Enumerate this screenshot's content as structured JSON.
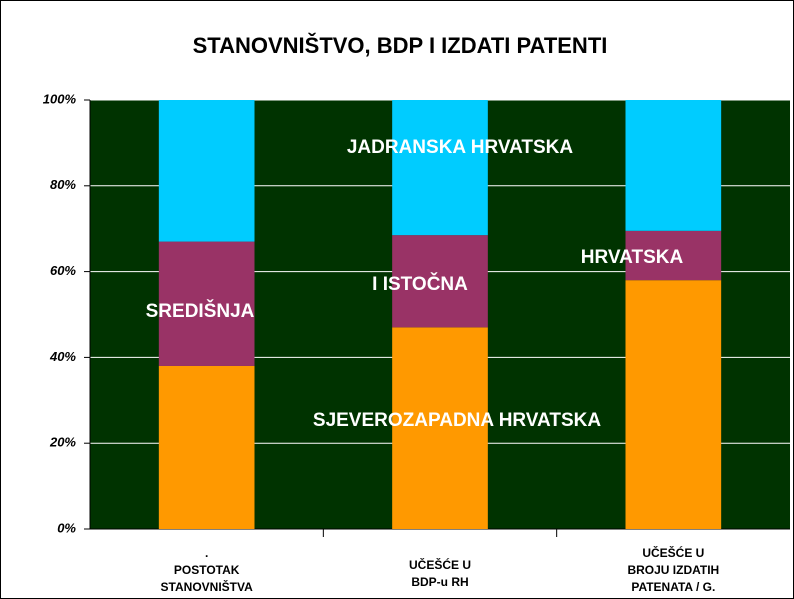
{
  "chart_data": {
    "type": "stacked_bar",
    "title": "STANOVNIŠTVO, BDP I IZDATI PATENTI",
    "categories": [
      [
        ".",
        "POSTOTAK",
        "STANOVNIŠTVA"
      ],
      [
        "UČEŠĆE U",
        "BDP-u  RH"
      ],
      [
        "UČEŠĆE U",
        "BROJU IZDATIH",
        "PATENATA / G."
      ]
    ],
    "series": [
      {
        "color": "#ff9900",
        "values": [
          38,
          47,
          58
        ]
      },
      {
        "color": "#993366",
        "values": [
          29,
          21.5,
          11.5
        ]
      },
      {
        "color": "#00ccff",
        "values": [
          33,
          31.5,
          30.5
        ]
      }
    ],
    "annotations": [
      "JADRANSKA HRVATSKA",
      "SREDIŠNJA",
      "I ISTOČNA",
      "HRVATSKA",
      "SJEVEROZAPADNA HRVATSKA"
    ],
    "ylim": [
      0,
      100
    ],
    "yticks": [
      {
        "value": 0,
        "label": "0%"
      },
      {
        "value": 20,
        "label": "20%"
      },
      {
        "value": 40,
        "label": "40%"
      },
      {
        "value": 60,
        "label": "60%"
      },
      {
        "value": 80,
        "label": "80%"
      },
      {
        "value": 100,
        "label": "100%"
      }
    ],
    "grid": true
  }
}
